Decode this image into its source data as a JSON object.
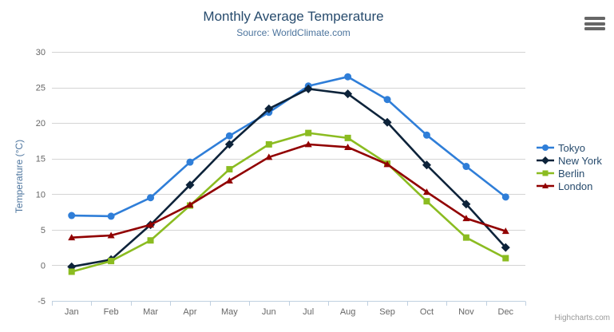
{
  "credit": "Highcharts.com",
  "chart_data": {
    "type": "line",
    "title": "Monthly Average Temperature",
    "subtitle": "Source: WorldClimate.com",
    "categories": [
      "Jan",
      "Feb",
      "Mar",
      "Apr",
      "May",
      "Jun",
      "Jul",
      "Aug",
      "Sep",
      "Oct",
      "Nov",
      "Dec"
    ],
    "xlabel": "",
    "ylabel": "Temperature (°C)",
    "ylim": [
      -5,
      30
    ],
    "y_ticks": [
      -5,
      0,
      5,
      10,
      15,
      20,
      25,
      30
    ],
    "grid": true,
    "legend_position": "right",
    "colors": {
      "grid_line": "#d4d4d4",
      "axis_line": "#c0d0e0",
      "axis_label": "#666666",
      "title_text": "#274b6d",
      "subtitle_text": "#4d759e"
    },
    "series": [
      {
        "name": "Tokyo",
        "marker": "circle",
        "color": "#2f7ed8",
        "values": [
          7.0,
          6.9,
          9.5,
          14.5,
          18.2,
          21.5,
          25.2,
          26.5,
          23.3,
          18.3,
          13.9,
          9.6
        ]
      },
      {
        "name": "New York",
        "marker": "diamond",
        "color": "#0d233a",
        "values": [
          -0.2,
          0.8,
          5.7,
          11.3,
          17.0,
          22.0,
          24.8,
          24.1,
          20.1,
          14.1,
          8.6,
          2.5
        ]
      },
      {
        "name": "Berlin",
        "marker": "square",
        "color": "#8bbc21",
        "values": [
          -0.9,
          0.6,
          3.5,
          8.4,
          13.5,
          17.0,
          18.6,
          17.9,
          14.3,
          9.0,
          3.9,
          1.0
        ]
      },
      {
        "name": "London",
        "marker": "triangle",
        "color": "#910000",
        "values": [
          3.9,
          4.2,
          5.7,
          8.5,
          11.9,
          15.2,
          17.0,
          16.6,
          14.2,
          10.3,
          6.6,
          4.8
        ]
      }
    ]
  }
}
